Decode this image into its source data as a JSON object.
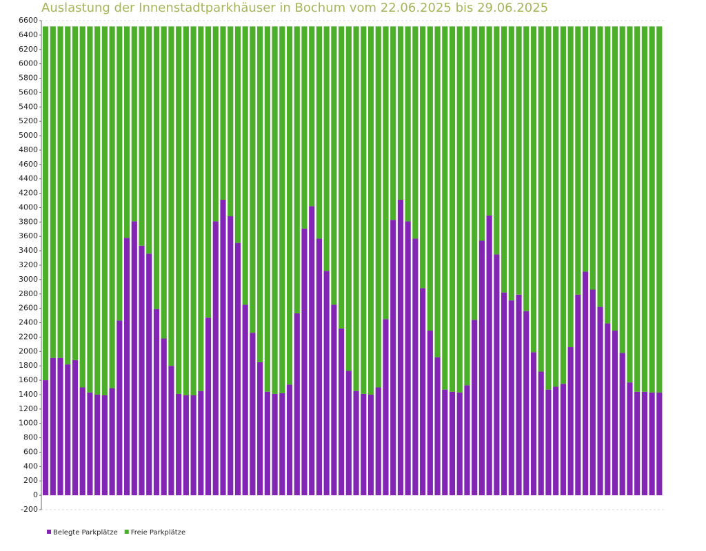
{
  "chart_data": {
    "type": "stacked-bar",
    "title": "Auslastung der Innenstadtparkhäuser in Bochum vom 22.06.2025 bis 29.06.2025",
    "categories": [
      null,
      null,
      null,
      null,
      null,
      null,
      null,
      null,
      null,
      null,
      null,
      null,
      null,
      null,
      null,
      null,
      null,
      null,
      null,
      null,
      null,
      null,
      null,
      null,
      null,
      null,
      null,
      null,
      null,
      null,
      null,
      null,
      null,
      null,
      null,
      null,
      null,
      null,
      null,
      null,
      null,
      null,
      null,
      null,
      null,
      null,
      null,
      null,
      null,
      null,
      null,
      null,
      null,
      null,
      null,
      null,
      null,
      null,
      null,
      null,
      null,
      null,
      null,
      null,
      null,
      null,
      null,
      null,
      null,
      null,
      null,
      null,
      null,
      null,
      null,
      null,
      null,
      null,
      null,
      null,
      null,
      null,
      null,
      null
    ],
    "series": [
      {
        "name": "Belegte Parkplätze",
        "color": "#8224b4",
        "values": [
          1600,
          1910,
          1910,
          1820,
          1880,
          1500,
          1430,
          1400,
          1390,
          1490,
          2430,
          3580,
          3810,
          3470,
          3360,
          2590,
          2180,
          1800,
          1410,
          1390,
          1390,
          1450,
          2470,
          3810,
          4110,
          3880,
          3510,
          2650,
          2260,
          1850,
          1440,
          1410,
          1420,
          1540,
          2530,
          3710,
          4020,
          3570,
          3120,
          2650,
          2320,
          1730,
          1450,
          1410,
          1400,
          1500,
          2450,
          3830,
          4110,
          3810,
          3570,
          2880,
          2290,
          1920,
          1470,
          1440,
          1430,
          1530,
          2440,
          3540,
          3890,
          3350,
          2820,
          2710,
          2790,
          2560,
          1990,
          1720,
          1470,
          1510,
          1550,
          2060,
          2790,
          3110,
          2860,
          2620,
          2390,
          2290,
          1980,
          1570,
          1440,
          1440,
          1430,
          1430
        ]
      },
      {
        "name": "Freie Parkplätze",
        "color": "#4caf2a",
        "values": [
          4920,
          4610,
          4610,
          4700,
          4640,
          5020,
          5090,
          5120,
          5130,
          5030,
          4090,
          2940,
          2710,
          3050,
          3160,
          3930,
          4340,
          4720,
          5110,
          5130,
          5130,
          5070,
          4050,
          2710,
          2410,
          2640,
          3010,
          3870,
          4260,
          4670,
          5080,
          5110,
          5100,
          4980,
          3990,
          2810,
          2500,
          2950,
          3400,
          3870,
          4200,
          4790,
          5070,
          5110,
          5120,
          5020,
          4070,
          2690,
          2410,
          2710,
          2950,
          3640,
          4230,
          4600,
          5050,
          5080,
          5090,
          4990,
          4080,
          2980,
          2630,
          3170,
          3700,
          3810,
          3730,
          3960,
          4530,
          4800,
          5050,
          5010,
          4970,
          4460,
          3730,
          3410,
          3660,
          3900,
          4130,
          4230,
          4540,
          4950,
          5080,
          5080,
          5090,
          5090
        ]
      }
    ],
    "ylim": [
      -200,
      6600
    ],
    "yticks": [
      -200,
      0,
      200,
      400,
      600,
      800,
      1000,
      1200,
      1400,
      1600,
      1800,
      2000,
      2200,
      2400,
      2600,
      2800,
      3000,
      3200,
      3400,
      3600,
      3800,
      4000,
      4200,
      4400,
      4600,
      4800,
      5000,
      5200,
      5400,
      5600,
      5800,
      6000,
      6200,
      6400,
      6600
    ],
    "grid": false
  }
}
